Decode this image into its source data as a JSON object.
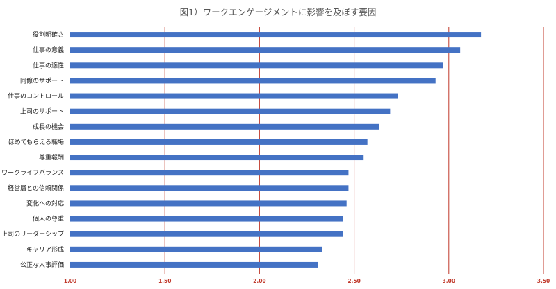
{
  "chart_data": {
    "type": "bar",
    "orientation": "horizontal",
    "title": "図1）ワークエンゲージメントに影響を及ぼす要因",
    "categories": [
      "役割明確さ",
      "仕事の意義",
      "仕事の適性",
      "同僚のサポート",
      "仕事のコントロール",
      "上司のサポート",
      "成長の機会",
      "ほめてもらえる職場",
      "尊重報酬",
      "ワークライフバランス",
      "経営層との信頼関係",
      "変化への対応",
      "個人の尊重",
      "上司のリーダーシップ",
      "キャリア形成",
      "公正な人事評価"
    ],
    "values": [
      3.17,
      3.06,
      2.97,
      2.93,
      2.73,
      2.69,
      2.63,
      2.57,
      2.55,
      2.47,
      2.47,
      2.46,
      2.44,
      2.44,
      2.33,
      2.31
    ],
    "xlim": [
      1.0,
      3.5
    ],
    "xticks": [
      "1.00",
      "1.50",
      "2.00",
      "2.50",
      "3.00",
      "3.50"
    ],
    "grid": true,
    "legend": "none",
    "colors": {
      "bar": "#4472c4",
      "grid": "#c0392b",
      "tick_label": "#c0392b"
    }
  }
}
